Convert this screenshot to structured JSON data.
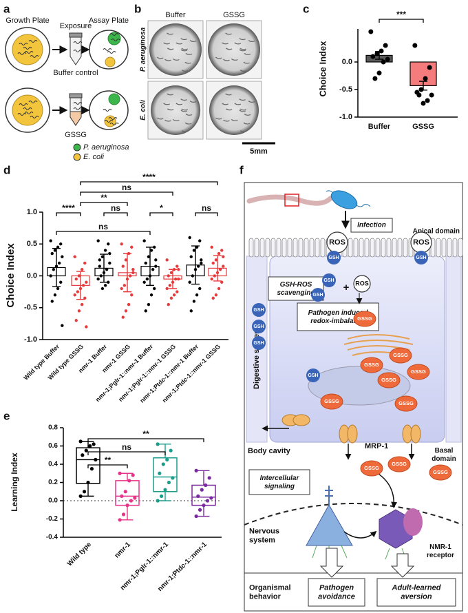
{
  "panel_labels": [
    "a",
    "b",
    "c",
    "d",
    "e",
    "f"
  ],
  "panel_a": {
    "growth_plate": "Growth Plate",
    "exposure": "Exposure",
    "assay_plate": "Assay Plate",
    "buffer_control": "Buffer control",
    "gssg": "GSSG",
    "legend": [
      {
        "name": "P. aeruginosa",
        "color": "#3cb54a"
      },
      {
        "name": "E. coli",
        "color": "#f2c53d"
      }
    ]
  },
  "panel_b": {
    "columns": [
      "Buffer",
      "GSSG"
    ],
    "rows": [
      "P. aeruginosa",
      "E. coli"
    ],
    "scale_bar": "5mm"
  },
  "chart_data": [
    {
      "type": "bar",
      "y_label": "Choice Index",
      "categories": [
        "Buffer",
        "GSSG"
      ],
      "values": [
        0.12,
        -0.43
      ],
      "errors": [
        0.07,
        0.08
      ],
      "colors": [
        "#595959",
        "#f47c7c"
      ],
      "point_color": "#000000",
      "points": [
        [
          0.55,
          0.3,
          0.2,
          0.15,
          0.1,
          0.05,
          0.0,
          -0.2,
          -0.3
        ],
        [
          0.3,
          -0.1,
          -0.3,
          -0.5,
          -0.55,
          -0.6,
          -0.7,
          -0.75,
          -0.6
        ]
      ],
      "ylim": [
        -1,
        0.6
      ],
      "yticks": [
        {
          "value": -1,
          "label": "-1.0"
        },
        {
          "value": -0.5,
          "label": "-0.5"
        },
        {
          "value": 0,
          "label": "0.0"
        }
      ],
      "comparisons": [
        {
          "between": [
            0,
            1
          ],
          "label": "***"
        }
      ]
    },
    {
      "type": "dot",
      "y_label": "Choice Index",
      "categories": [
        "Wild type Buffer",
        "Wild type GSSG",
        "nmr-1 Buffer",
        "nmr-1 GSSG",
        "nmr-1;Pglr-1::nmr-1 Buffer",
        "nmr-1;Pglr-1::nmr-1 GSSG",
        "nmr-1;Ptdc-1::nmr-1 Buffer",
        "nmr-1;Ptdc-1::nmr-1 GSSG"
      ],
      "values": [
        0.13,
        -0.15,
        0.12,
        0.05,
        0.15,
        -0.05,
        0.17,
        0.12
      ],
      "errors": [
        0.3,
        0.22,
        0.22,
        0.3,
        0.3,
        0.15,
        0.3,
        0.2
      ],
      "colors": [
        "#000000",
        "#e8393b",
        "#000000",
        "#e8393b",
        "#000000",
        "#e8393b",
        "#000000",
        "#e8393b"
      ],
      "points": [
        [
          0.55,
          0.5,
          0.45,
          0.4,
          0.35,
          0.3,
          0.2,
          0.15,
          0.1,
          0.0,
          -0.1,
          -0.2,
          -0.3,
          -0.4,
          -0.78
        ],
        [
          0.3,
          0.2,
          0.1,
          0.0,
          -0.05,
          -0.1,
          -0.15,
          -0.2,
          -0.25,
          -0.3,
          -0.35,
          -0.45,
          -0.55,
          -0.7,
          -0.8
        ],
        [
          0.55,
          0.5,
          0.4,
          0.3,
          0.25,
          0.2,
          0.1,
          0.05,
          0.0,
          -0.05,
          -0.1,
          -0.15,
          -0.2,
          0.15,
          0.35
        ],
        [
          0.5,
          0.45,
          0.35,
          0.25,
          0.15,
          0.1,
          0.0,
          -0.05,
          -0.15,
          -0.2,
          -0.3,
          -0.45,
          -0.55,
          -0.65,
          0.05
        ],
        [
          0.55,
          0.45,
          0.4,
          0.3,
          0.2,
          0.15,
          0.1,
          0.0,
          -0.05,
          -0.1,
          -0.2,
          -0.3,
          -0.45,
          -0.55,
          0.25
        ],
        [
          0.25,
          0.15,
          0.1,
          0.05,
          0.0,
          -0.05,
          -0.05,
          -0.1,
          -0.15,
          -0.2,
          -0.25,
          -0.3,
          -0.35,
          -0.45,
          0.1
        ],
        [
          0.6,
          0.55,
          0.45,
          0.4,
          0.3,
          0.2,
          0.15,
          0.1,
          0.0,
          -0.1,
          -0.2,
          -0.3,
          -0.4,
          -0.55,
          0.25
        ],
        [
          0.45,
          0.4,
          0.35,
          0.25,
          0.2,
          0.15,
          0.1,
          0.05,
          0.0,
          -0.05,
          -0.1,
          -0.2,
          -0.3,
          -0.35,
          0.3
        ]
      ],
      "ylim": [
        -1,
        1
      ],
      "yticks": [
        {
          "value": -1,
          "label": "-1.0"
        },
        {
          "value": -0.5,
          "label": "-0.5"
        },
        {
          "value": 0,
          "label": "0.0"
        },
        {
          "value": 0.5,
          "label": "0.5"
        },
        {
          "value": 1,
          "label": "1.0"
        }
      ],
      "comparisons": [
        {
          "between": [
            1,
            7
          ],
          "label": "****"
        },
        {
          "between": [
            1,
            5
          ],
          "label": "ns"
        },
        {
          "between": [
            1,
            3
          ],
          "label": "**"
        },
        {
          "between": [
            0,
            1
          ],
          "label": "****"
        },
        {
          "between": [
            2,
            3
          ],
          "label": "ns"
        },
        {
          "between": [
            4,
            5
          ],
          "label": "*"
        },
        {
          "between": [
            6,
            7
          ],
          "label": "ns"
        },
        {
          "between": [
            0,
            4
          ],
          "label": "ns"
        }
      ]
    },
    {
      "type": "box",
      "y_label": "Learning Index",
      "categories": [
        "Wild type",
        "nmr-1",
        "nmr-1;Pglr-1::nmr-1",
        "nmr-1;Ptdc-1::nmr-1"
      ],
      "colors": [
        "#000000",
        "#e8338a",
        "#1a9e8a",
        "#7a2a9e"
      ],
      "boxes": [
        {
          "min": 0.05,
          "q1": 0.19,
          "median": 0.45,
          "q3": 0.58,
          "max": 0.65
        },
        {
          "min": -0.21,
          "q1": -0.05,
          "median": 0.05,
          "q3": 0.22,
          "max": 0.3
        },
        {
          "min": 0.0,
          "q1": 0.1,
          "median": 0.26,
          "q3": 0.47,
          "max": 0.62
        },
        {
          "min": -0.17,
          "q1": -0.05,
          "median": 0.04,
          "q3": 0.17,
          "max": 0.33
        }
      ],
      "points": [
        [
          0.65,
          0.62,
          0.6,
          0.55,
          0.5,
          0.45,
          0.35,
          0.2,
          0.1,
          0.05
        ],
        [
          0.3,
          0.28,
          0.22,
          0.1,
          0.05,
          0.03,
          0.0,
          -0.05,
          -0.15,
          -0.21
        ],
        [
          0.62,
          0.55,
          0.45,
          0.4,
          0.3,
          0.25,
          0.2,
          0.12,
          0.05,
          0.0
        ],
        [
          0.33,
          0.25,
          0.17,
          0.12,
          0.05,
          0.03,
          0.0,
          -0.05,
          -0.1,
          -0.17
        ]
      ],
      "reference_line": 0,
      "ylim": [
        -0.4,
        0.8
      ],
      "yticks": [
        {
          "value": -0.4,
          "label": "-0.4"
        },
        {
          "value": -0.2,
          "label": "-0.2"
        },
        {
          "value": 0,
          "label": "0.0"
        },
        {
          "value": 0.2,
          "label": "0.2"
        },
        {
          "value": 0.4,
          "label": "0.4"
        },
        {
          "value": 0.6,
          "label": "0.6"
        },
        {
          "value": 0.8,
          "label": "0.8"
        }
      ],
      "comparisons": [
        {
          "between": [
            0,
            3
          ],
          "label": "**"
        },
        {
          "between": [
            0,
            2
          ],
          "label": "ns"
        },
        {
          "between": [
            0,
            1
          ],
          "label": "**"
        }
      ]
    }
  ],
  "panel_f": {
    "infection": "Infection",
    "apical_domain": "Apical domain",
    "ros_labels": [
      "ROS",
      "ROS",
      "ROS"
    ],
    "gsh_labels": [
      "GSH",
      "GSH",
      "GSH",
      "GSH",
      "GSH",
      "GSH",
      "GSH",
      "GSH"
    ],
    "gssg_labels": [
      "GSSG",
      "GSSG",
      "GSSG",
      "GSSG",
      "GSSG",
      "GSSG",
      "GSSG",
      "GSSG",
      "GSSG",
      "GSSG"
    ],
    "plus": "+",
    "scavenging": "GSH-ROS scavenging",
    "redox": "Pathogen induced redox-imbalance",
    "digestive_system": "Digestive system",
    "body_cavity": "Body cavity",
    "mrp1": "MRP-1",
    "basal_domain": "Basal domain",
    "signaling": "Intercellular signaling",
    "nervous_system": "Nervous system",
    "receptor": "NMR-1 receptor",
    "behavior": "Organismal behavior",
    "avoidance": "Pathogen avoidance",
    "aversion": "Adult-learned aversion"
  }
}
